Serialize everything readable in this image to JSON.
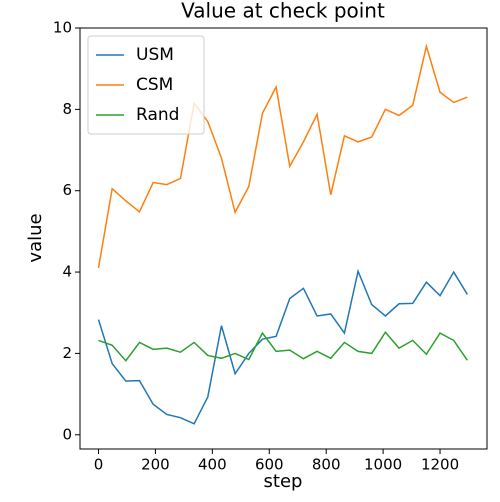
{
  "chart_data": {
    "type": "line",
    "title": "Value at check point",
    "xlabel": "step",
    "ylabel": "value",
    "x": [
      0,
      48,
      96,
      144,
      192,
      240,
      288,
      336,
      384,
      432,
      480,
      528,
      576,
      624,
      672,
      720,
      768,
      816,
      864,
      912,
      960,
      1008,
      1056,
      1104,
      1152,
      1200,
      1248,
      1296
    ],
    "series": [
      {
        "name": "USM",
        "color": "#1f77b4",
        "values": [
          2.83,
          1.75,
          1.32,
          1.33,
          0.75,
          0.5,
          0.42,
          0.27,
          0.93,
          2.68,
          1.5,
          2.0,
          2.35,
          2.42,
          3.35,
          3.6,
          2.92,
          2.97,
          2.5,
          4.02,
          3.2,
          2.92,
          3.22,
          3.23,
          3.75,
          3.42,
          4.0,
          3.45
        ]
      },
      {
        "name": "CSM",
        "color": "#ff7f0e",
        "values": [
          4.1,
          6.05,
          5.75,
          5.48,
          6.2,
          6.15,
          6.3,
          8.15,
          7.7,
          6.8,
          5.47,
          6.1,
          7.9,
          8.55,
          6.6,
          7.2,
          7.88,
          5.9,
          7.35,
          7.2,
          7.32,
          8.0,
          7.85,
          8.1,
          9.55,
          8.42,
          8.17,
          8.3
        ]
      },
      {
        "name": "Rand",
        "color": "#2ca02c",
        "values": [
          2.32,
          2.2,
          1.82,
          2.27,
          2.1,
          2.13,
          2.03,
          2.27,
          1.95,
          1.88,
          2.0,
          1.85,
          2.5,
          2.05,
          2.08,
          1.87,
          2.05,
          1.88,
          2.27,
          2.05,
          2.0,
          2.52,
          2.13,
          2.32,
          1.98,
          2.5,
          2.32,
          1.83
        ]
      }
    ],
    "xlim": [
      -65,
      1365
    ],
    "ylim": [
      -0.35,
      10
    ],
    "xticks": [
      0,
      200,
      400,
      600,
      800,
      1000,
      1200
    ],
    "yticks": [
      0,
      2,
      4,
      6,
      8,
      10
    ],
    "legend": "upper left",
    "grid": false
  }
}
